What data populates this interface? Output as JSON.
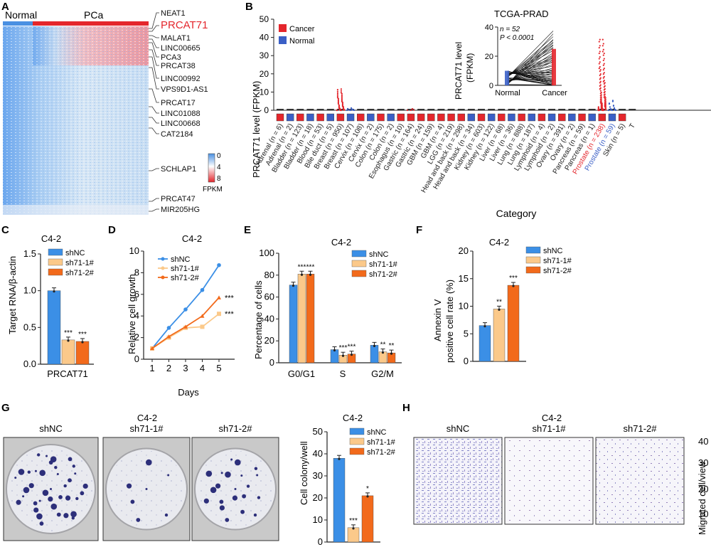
{
  "colors": {
    "shNC": "#3b8fe6",
    "sh71_1": "#fbc98a",
    "sh71_2": "#f26a1b",
    "cancer": "#e4262c",
    "normal": "#3a5fc6",
    "prostate_red": "#e4262c",
    "prostate_blue": "#3a5fc6"
  },
  "chart_data": [
    {
      "panel": "A",
      "type": "heatmap",
      "group_labels": [
        "Normal",
        "PCa"
      ],
      "genes": [
        "NEAT1",
        "PRCAT71",
        "MALAT1",
        "LINC00665",
        "PCA3",
        "PRCAT38",
        "LINC00992",
        "VPS9D1-AS1",
        "PRCAT17",
        "LINC01088",
        "LINC00668",
        "CAT2184",
        "SCHLAP1",
        "PRCAT47",
        "MIR205HG"
      ],
      "highlight_gene": "PRCAT71",
      "colorbar_ticks": [
        "0",
        "4",
        "8"
      ],
      "colorbar_label": "FPKM"
    },
    {
      "panel": "B",
      "type": "scatter",
      "ylabel": "PRCAT71 level (FPKM)",
      "xlabel": "Category",
      "ylim": [
        0,
        50
      ],
      "yticks": [
        0,
        10,
        20,
        30,
        40,
        50
      ],
      "legend": [
        "Cancer",
        "Normal"
      ],
      "categories": [
        "Adrenal (n = 6)",
        "Adrenal (n = 2)",
        "Bladder (n = 123)",
        "Bladder (n = 18)",
        "Blood (n = 53)",
        "Bile duct (n = 5)",
        "Breast (n = 950)",
        "Breast (n = 107)",
        "Cervix (n = 108)",
        "Cervix (n = 2)",
        "Colon (n = 175)",
        "Colon (n = 2)",
        "Esophagus (n = 10)",
        "Gastric (n = 164)",
        "Gastric (n = 24)",
        "GBM (n = 159)",
        "GBM (n = 4)",
        "LGG (n = 219)",
        "Head and back (n = 298)",
        "Head and back (n = 34)",
        "Kidney (n = 603)",
        "Kidney (n = 122)",
        "Liver (n = 68)",
        "Liver (n = 36)",
        "Lung (n = 888)",
        "Lung (n = 187)",
        "Lymphoid (n = 4)",
        "Lymphoid (n = 2)",
        "Ovary (n = 391)",
        "Ovary (n = 2)",
        "Pancreas (n = 59)",
        "Pancreas (n = 1)",
        "Prostate (n = 238)",
        "Prostate (n = 59)",
        "Skin (n = 5)",
        "T"
      ],
      "inset": {
        "title": "TCGA-PRAD",
        "ylabel": "PRCAT71 level\n(FPKM)",
        "categories": [
          "Normal",
          "Cancer"
        ],
        "ylim": [
          0,
          40
        ],
        "yticks": [
          0,
          20,
          40
        ],
        "annotation_n": "n = 52",
        "annotation_p": "P < 0.0001"
      }
    },
    {
      "panel": "C",
      "type": "bar",
      "title": "C4-2",
      "ylabel": "Target RNA/β-actin",
      "categories": [
        "PRCAT71"
      ],
      "ylim": [
        0,
        1.5
      ],
      "yticks": [
        "0.0",
        "0.5",
        "1.0",
        "1.5"
      ],
      "series": [
        {
          "name": "shNC",
          "values": [
            1.0
          ],
          "err": [
            0.01
          ]
        },
        {
          "name": "sh71-1#",
          "values": [
            0.33
          ],
          "err": [
            0.05
          ],
          "sig": "***"
        },
        {
          "name": "sh71-2#",
          "values": [
            0.31
          ],
          "err": [
            0.03
          ],
          "sig": "***"
        }
      ]
    },
    {
      "panel": "D",
      "type": "line",
      "title": "C4-2",
      "ylabel": "Relative cell growth",
      "xlabel": "Days",
      "x": [
        1,
        2,
        3,
        4,
        5
      ],
      "ylim": [
        0,
        10
      ],
      "yticks": [
        0,
        2,
        4,
        6,
        8,
        10
      ],
      "series": [
        {
          "name": "shNC",
          "values": [
            1.0,
            2.9,
            4.6,
            6.4,
            8.7
          ]
        },
        {
          "name": "sh71-1#",
          "values": [
            1.0,
            2.0,
            2.9,
            3.0,
            4.2
          ],
          "sig": "***"
        },
        {
          "name": "sh71-2#",
          "values": [
            1.0,
            2.1,
            3.0,
            4.0,
            5.7
          ],
          "sig": "***"
        }
      ]
    },
    {
      "panel": "E",
      "type": "bar",
      "title": "C4-2",
      "ylabel": "Percentage of cells",
      "categories": [
        "G0/G1",
        "S",
        "G2/M"
      ],
      "ylim": [
        0,
        100
      ],
      "yticks": [
        0,
        20,
        40,
        60,
        80,
        100
      ],
      "series": [
        {
          "name": "shNC",
          "values": [
            71,
            12,
            16
          ]
        },
        {
          "name": "sh71-1#",
          "values": [
            81,
            7,
            10
          ],
          "sig": [
            "***",
            "***",
            "**"
          ]
        },
        {
          "name": "sh71-2#",
          "values": [
            81,
            8,
            9
          ],
          "sig": [
            "***",
            "***",
            "**"
          ]
        }
      ]
    },
    {
      "panel": "F",
      "type": "bar",
      "title": "C4-2",
      "ylabel": "Annexin V\npositive cell rate (%)",
      "categories": [
        ""
      ],
      "ylim": [
        0,
        20
      ],
      "yticks": [
        0,
        5,
        10,
        15,
        20
      ],
      "series": [
        {
          "name": "shNC",
          "values": [
            6.5
          ]
        },
        {
          "name": "sh71-1#",
          "values": [
            9.5
          ],
          "sig": "**"
        },
        {
          "name": "sh71-2#",
          "values": [
            13.8
          ],
          "sig": "***"
        }
      ]
    },
    {
      "panel": "G",
      "type": "bar",
      "title": "C4-2",
      "ylabel": "Cell colony/well",
      "categories": [
        ""
      ],
      "ylim": [
        0,
        50
      ],
      "yticks": [
        0,
        10,
        20,
        30,
        40,
        50
      ],
      "series": [
        {
          "name": "shNC",
          "values": [
            38
          ]
        },
        {
          "name": "sh71-1#",
          "values": [
            6.5
          ],
          "sig": "***"
        },
        {
          "name": "sh71-2#",
          "values": [
            21
          ],
          "sig": "*"
        }
      ],
      "image_labels": [
        "shNC",
        "sh71-1#",
        "sh71-2#"
      ],
      "image_title": "C4-2"
    },
    {
      "panel": "H",
      "type": "bar",
      "title": "C4-2",
      "ylabel": "Migrated cell/view",
      "yticks": [
        "10",
        "20",
        "30",
        "40"
      ],
      "image_labels": [
        "shNC",
        "sh71-1#",
        "sh71-2#"
      ]
    }
  ]
}
